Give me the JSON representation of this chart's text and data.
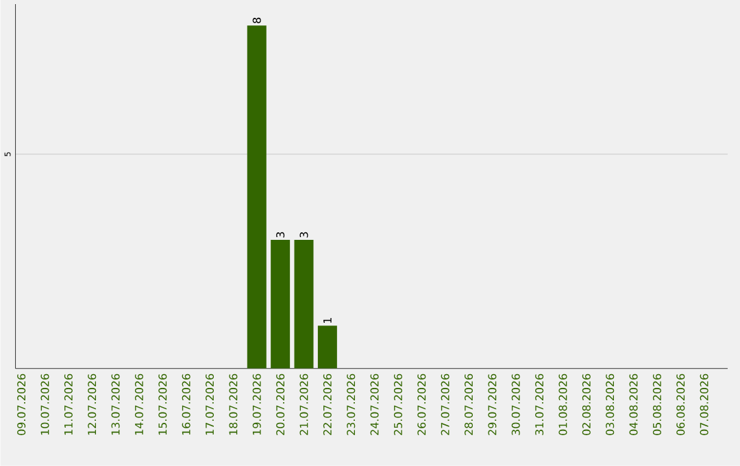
{
  "chart_data": {
    "type": "bar",
    "categories": [
      "09.07.2026",
      "10.07.2026",
      "11.07.2026",
      "12.07.2026",
      "13.07.2026",
      "14.07.2026",
      "15.07.2026",
      "16.07.2026",
      "17.07.2026",
      "18.07.2026",
      "19.07.2026",
      "20.07.2026",
      "21.07.2026",
      "22.07.2026",
      "23.07.2026",
      "24.07.2026",
      "25.07.2026",
      "26.07.2026",
      "27.07.2026",
      "28.07.2026",
      "29.07.2026",
      "30.07.2026",
      "31.07.2026",
      "01.08.2026",
      "02.08.2026",
      "03.08.2026",
      "04.08.2026",
      "05.08.2026",
      "06.08.2026",
      "07.08.2026"
    ],
    "values": [
      0,
      0,
      0,
      0,
      0,
      0,
      0,
      0,
      0,
      0,
      8,
      3,
      3,
      1,
      0,
      0,
      0,
      0,
      0,
      0,
      0,
      0,
      0,
      0,
      0,
      0,
      0,
      0,
      0,
      0
    ],
    "value_labels": [
      null,
      null,
      null,
      null,
      null,
      null,
      null,
      null,
      null,
      null,
      "8",
      "3",
      "3",
      "1",
      null,
      null,
      null,
      null,
      null,
      null,
      null,
      null,
      null,
      null,
      null,
      null,
      null,
      null,
      null,
      null
    ],
    "color": "#336600",
    "ylim": [
      0,
      8.5
    ],
    "yticks": [
      5
    ],
    "grid": "y"
  }
}
